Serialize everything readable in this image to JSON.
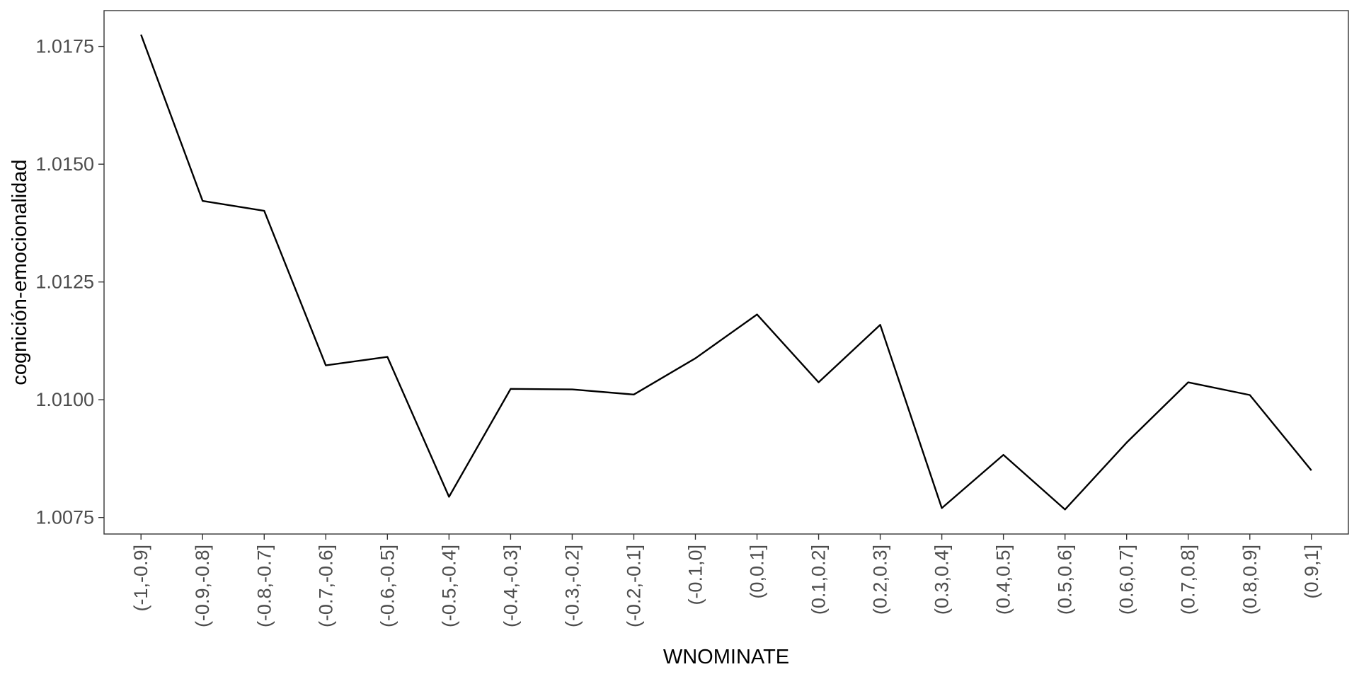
{
  "chart_data": {
    "type": "line",
    "xlabel": "WNOMINATE",
    "ylabel": "cognición-emocionalidad",
    "categories": [
      "(-1,-0.9]",
      "(-0.9,-0.8]",
      "(-0.8,-0.7]",
      "(-0.7,-0.6]",
      "(-0.6,-0.5]",
      "(-0.5,-0.4]",
      "(-0.4,-0.3]",
      "(-0.3,-0.2]",
      "(-0.2,-0.1]",
      "(-0.1,0]",
      "(0,0.1]",
      "(0.1,0.2]",
      "(0.2,0.3]",
      "(0.3,0.4]",
      "(0.4,0.5]",
      "(0.5,0.6]",
      "(0.6,0.7]",
      "(0.7,0.8]",
      "(0.8,0.9]",
      "(0.9,1]"
    ],
    "values": [
      1.01775,
      1.01422,
      1.01401,
      1.01073,
      1.01091,
      1.00794,
      1.01023,
      1.01022,
      1.01011,
      1.01088,
      1.01181,
      1.01037,
      1.01159,
      1.0077,
      1.00883,
      1.00767,
      1.00909,
      1.01037,
      1.0101,
      1.0085
    ],
    "yticks": [
      1.0075,
      1.01,
      1.0125,
      1.015,
      1.0175
    ],
    "ytick_labels": [
      "1.0075",
      "1.0100",
      "1.0125",
      "1.0150",
      "1.0175"
    ],
    "ylim": [
      1.00715,
      1.01826
    ],
    "grid": false,
    "line_color": "#000000",
    "panel_border_color": "#333333",
    "tick_label_color": "#4d4d4d"
  }
}
